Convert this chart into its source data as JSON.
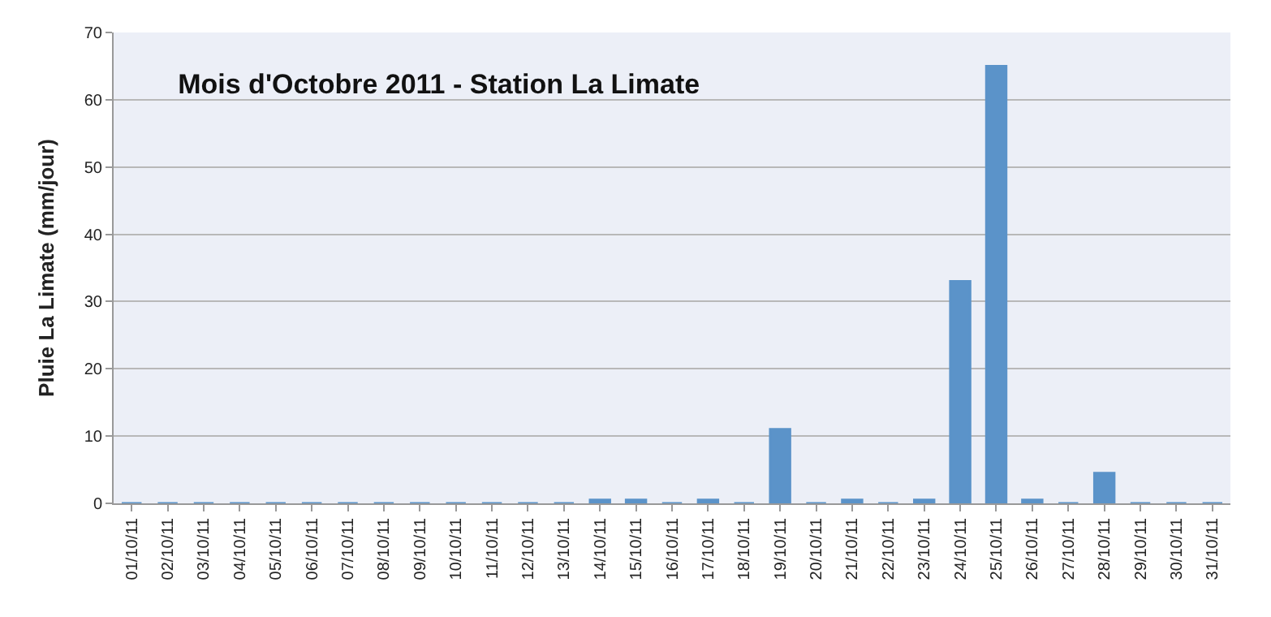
{
  "chart_data": {
    "type": "bar",
    "title": "Mois d'Octobre 2011 - Station La Limate",
    "ylabel": "Pluie La Limate (mm/jour)",
    "categories": [
      "01/10/11",
      "02/10/11",
      "03/10/11",
      "04/10/11",
      "05/10/11",
      "06/10/11",
      "07/10/11",
      "08/10/11",
      "09/10/11",
      "10/10/11",
      "11/10/11",
      "12/10/11",
      "13/10/11",
      "14/10/11",
      "15/10/11",
      "16/10/11",
      "17/10/11",
      "18/10/11",
      "19/10/11",
      "20/10/11",
      "21/10/11",
      "22/10/11",
      "23/10/11",
      "24/10/11",
      "25/10/11",
      "26/10/11",
      "27/10/11",
      "28/10/11",
      "29/10/11",
      "30/10/11",
      "31/10/11"
    ],
    "values": [
      0,
      0,
      0,
      0,
      0,
      0,
      0,
      0,
      0,
      0,
      0,
      0,
      0,
      0.5,
      0.5,
      0,
      0.5,
      0,
      11,
      0,
      0.5,
      0,
      0.5,
      33,
      65,
      0.5,
      0,
      4.5,
      0,
      0,
      0
    ],
    "color": "#5b93c9",
    "ylim": [
      0,
      70
    ],
    "yticks": [
      0,
      10,
      20,
      30,
      40,
      50,
      60,
      70
    ],
    "grid": "y"
  }
}
